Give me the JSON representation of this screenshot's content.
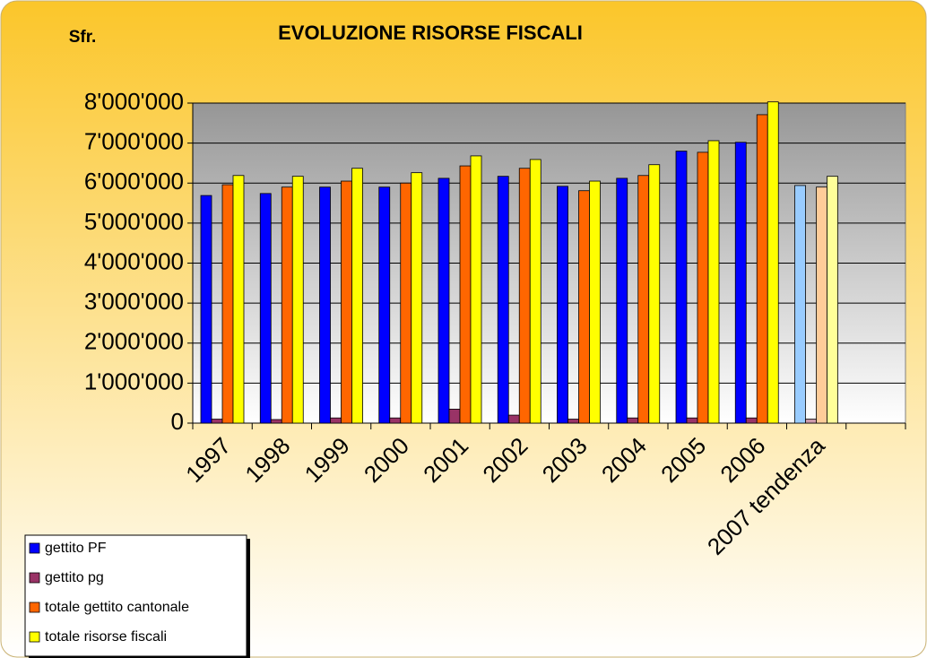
{
  "chart_data": {
    "type": "bar",
    "unit_label": "Sfr.",
    "title": "EVOLUZIONE RISORSE FISCALI",
    "categories": [
      "1997",
      "1998",
      "1999",
      "2000",
      "2001",
      "2002",
      "2003",
      "2004",
      "2005",
      "2006",
      "2007 tendenza",
      null
    ],
    "series": [
      {
        "name": "gettito PF",
        "color": "#0000ff",
        "colors": [
          "#0000ff",
          "#0000ff",
          "#0000ff",
          "#0000ff",
          "#0000ff",
          "#0000ff",
          "#0000ff",
          "#0000ff",
          "#0000ff",
          "#0000ff",
          "#99ccff",
          null
        ],
        "values": [
          5690000,
          5740000,
          5900000,
          5900000,
          6120000,
          6170000,
          5920000,
          6120000,
          6800000,
          7020000,
          5940000,
          null
        ]
      },
      {
        "name": "gettito pg",
        "color": "#993366",
        "colors": [
          "#993366",
          "#993366",
          "#993366",
          "#993366",
          "#993366",
          "#993366",
          "#993366",
          "#993366",
          "#993366",
          "#993366",
          "#cc99aa",
          null
        ],
        "values": [
          100000,
          90000,
          130000,
          130000,
          350000,
          200000,
          100000,
          130000,
          130000,
          130000,
          100000,
          null
        ]
      },
      {
        "name": "totale gettito cantonale",
        "color": "#ff6600",
        "colors": [
          "#ff6600",
          "#ff6600",
          "#ff6600",
          "#ff6600",
          "#ff6600",
          "#ff6600",
          "#ff6600",
          "#ff6600",
          "#ff6600",
          "#ff6600",
          "#ffcc99",
          null
        ],
        "values": [
          5960000,
          5900000,
          6050000,
          6000000,
          6430000,
          6370000,
          5810000,
          6190000,
          6770000,
          7710000,
          5900000,
          null
        ]
      },
      {
        "name": "totale risorse fiscali",
        "color": "#ffff00",
        "colors": [
          "#ffff00",
          "#ffff00",
          "#ffff00",
          "#ffff00",
          "#ffff00",
          "#ffff00",
          "#ffff00",
          "#ffff00",
          "#ffff00",
          "#ffff00",
          "#ffff99",
          null
        ],
        "values": [
          6190000,
          6170000,
          6370000,
          6260000,
          6680000,
          6590000,
          6050000,
          6460000,
          7060000,
          8030000,
          6170000,
          null
        ]
      }
    ],
    "ylim": [
      0,
      8000000
    ],
    "yticks": [
      0,
      {
        "value": 1000000,
        "label": "1'000'000"
      },
      {
        "value": 2000000,
        "label": "2'000'000"
      },
      {
        "value": 3000000,
        "label": "3'000'000"
      },
      {
        "value": 4000000,
        "label": "4'000'000"
      },
      {
        "value": 5000000,
        "label": "5'000'000"
      },
      {
        "value": 6000000,
        "label": "6'000'000"
      },
      {
        "value": 7000000,
        "label": "7'000'000"
      },
      {
        "value": 8000000,
        "label": "8'000'000"
      }
    ],
    "grid": true,
    "legend": "bottom-left"
  }
}
